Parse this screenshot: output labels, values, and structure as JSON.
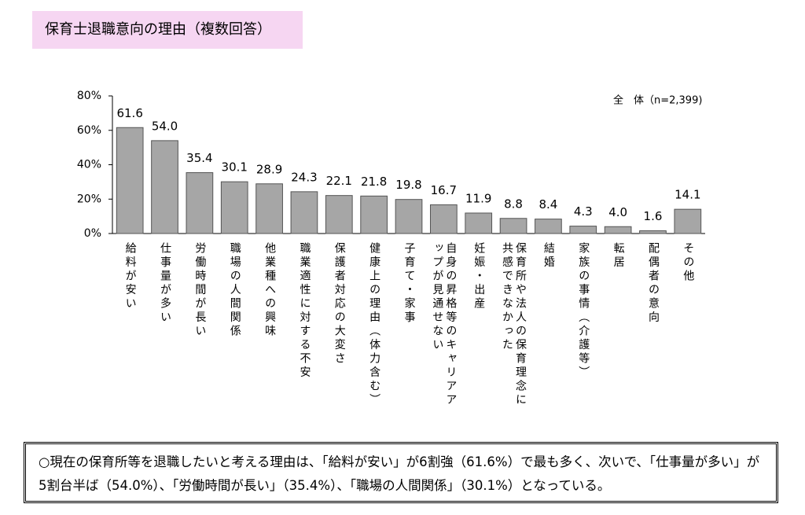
{
  "chart_data": {
    "type": "bar",
    "title": "保育士退職意向の理由（複数回答）",
    "annotation": "全　体（n=2,399)",
    "categories": [
      "給料が安い",
      "仕事量が多い",
      "労働時間が長い",
      "職場の人間関係",
      "他業種への興味",
      "職業適性に対する不安",
      "保護者対応の大変さ",
      "健康上の理由（体力含む）",
      "子育て・家事",
      "自身の昇格等のキャリアアップが見通せない",
      "妊娠・出産",
      "保育所や法人の保育理念に共感できなかった",
      "結婚",
      "家族の事情（介護等）",
      "転居",
      "配偶者の意向",
      "その他"
    ],
    "values": [
      61.6,
      54.0,
      35.4,
      30.1,
      28.9,
      24.3,
      22.1,
      21.8,
      19.8,
      16.7,
      11.9,
      8.8,
      8.4,
      4.3,
      4.0,
      1.6,
      14.1
    ],
    "value_labels": [
      "61.6",
      "54.0",
      "35.4",
      "30.1",
      "28.9",
      "24.3",
      "22.1",
      "21.8",
      "19.8",
      "16.7",
      "11.9",
      "8.8",
      "8.4",
      "4.3",
      "4.0",
      "1.6",
      "14.1"
    ],
    "color": "#a6a6a6",
    "ylim": [
      0,
      80
    ],
    "yticks": [
      {
        "value": 0,
        "label": "0%"
      },
      {
        "value": 20,
        "label": "20%"
      },
      {
        "value": 40,
        "label": "40%"
      },
      {
        "value": 60,
        "label": "60%"
      },
      {
        "value": 80,
        "label": "80%"
      }
    ]
  },
  "summary": "○現在の保育所等を退職したいと考える理由は、「給料が安い」が6割強（61.6%）で最も多く、次いで、「仕事量が多い」が5割台半ば（54.0%）、「労働時間が長い」（35.4%）、「職場の人間関係」（30.1%）となっている。"
}
